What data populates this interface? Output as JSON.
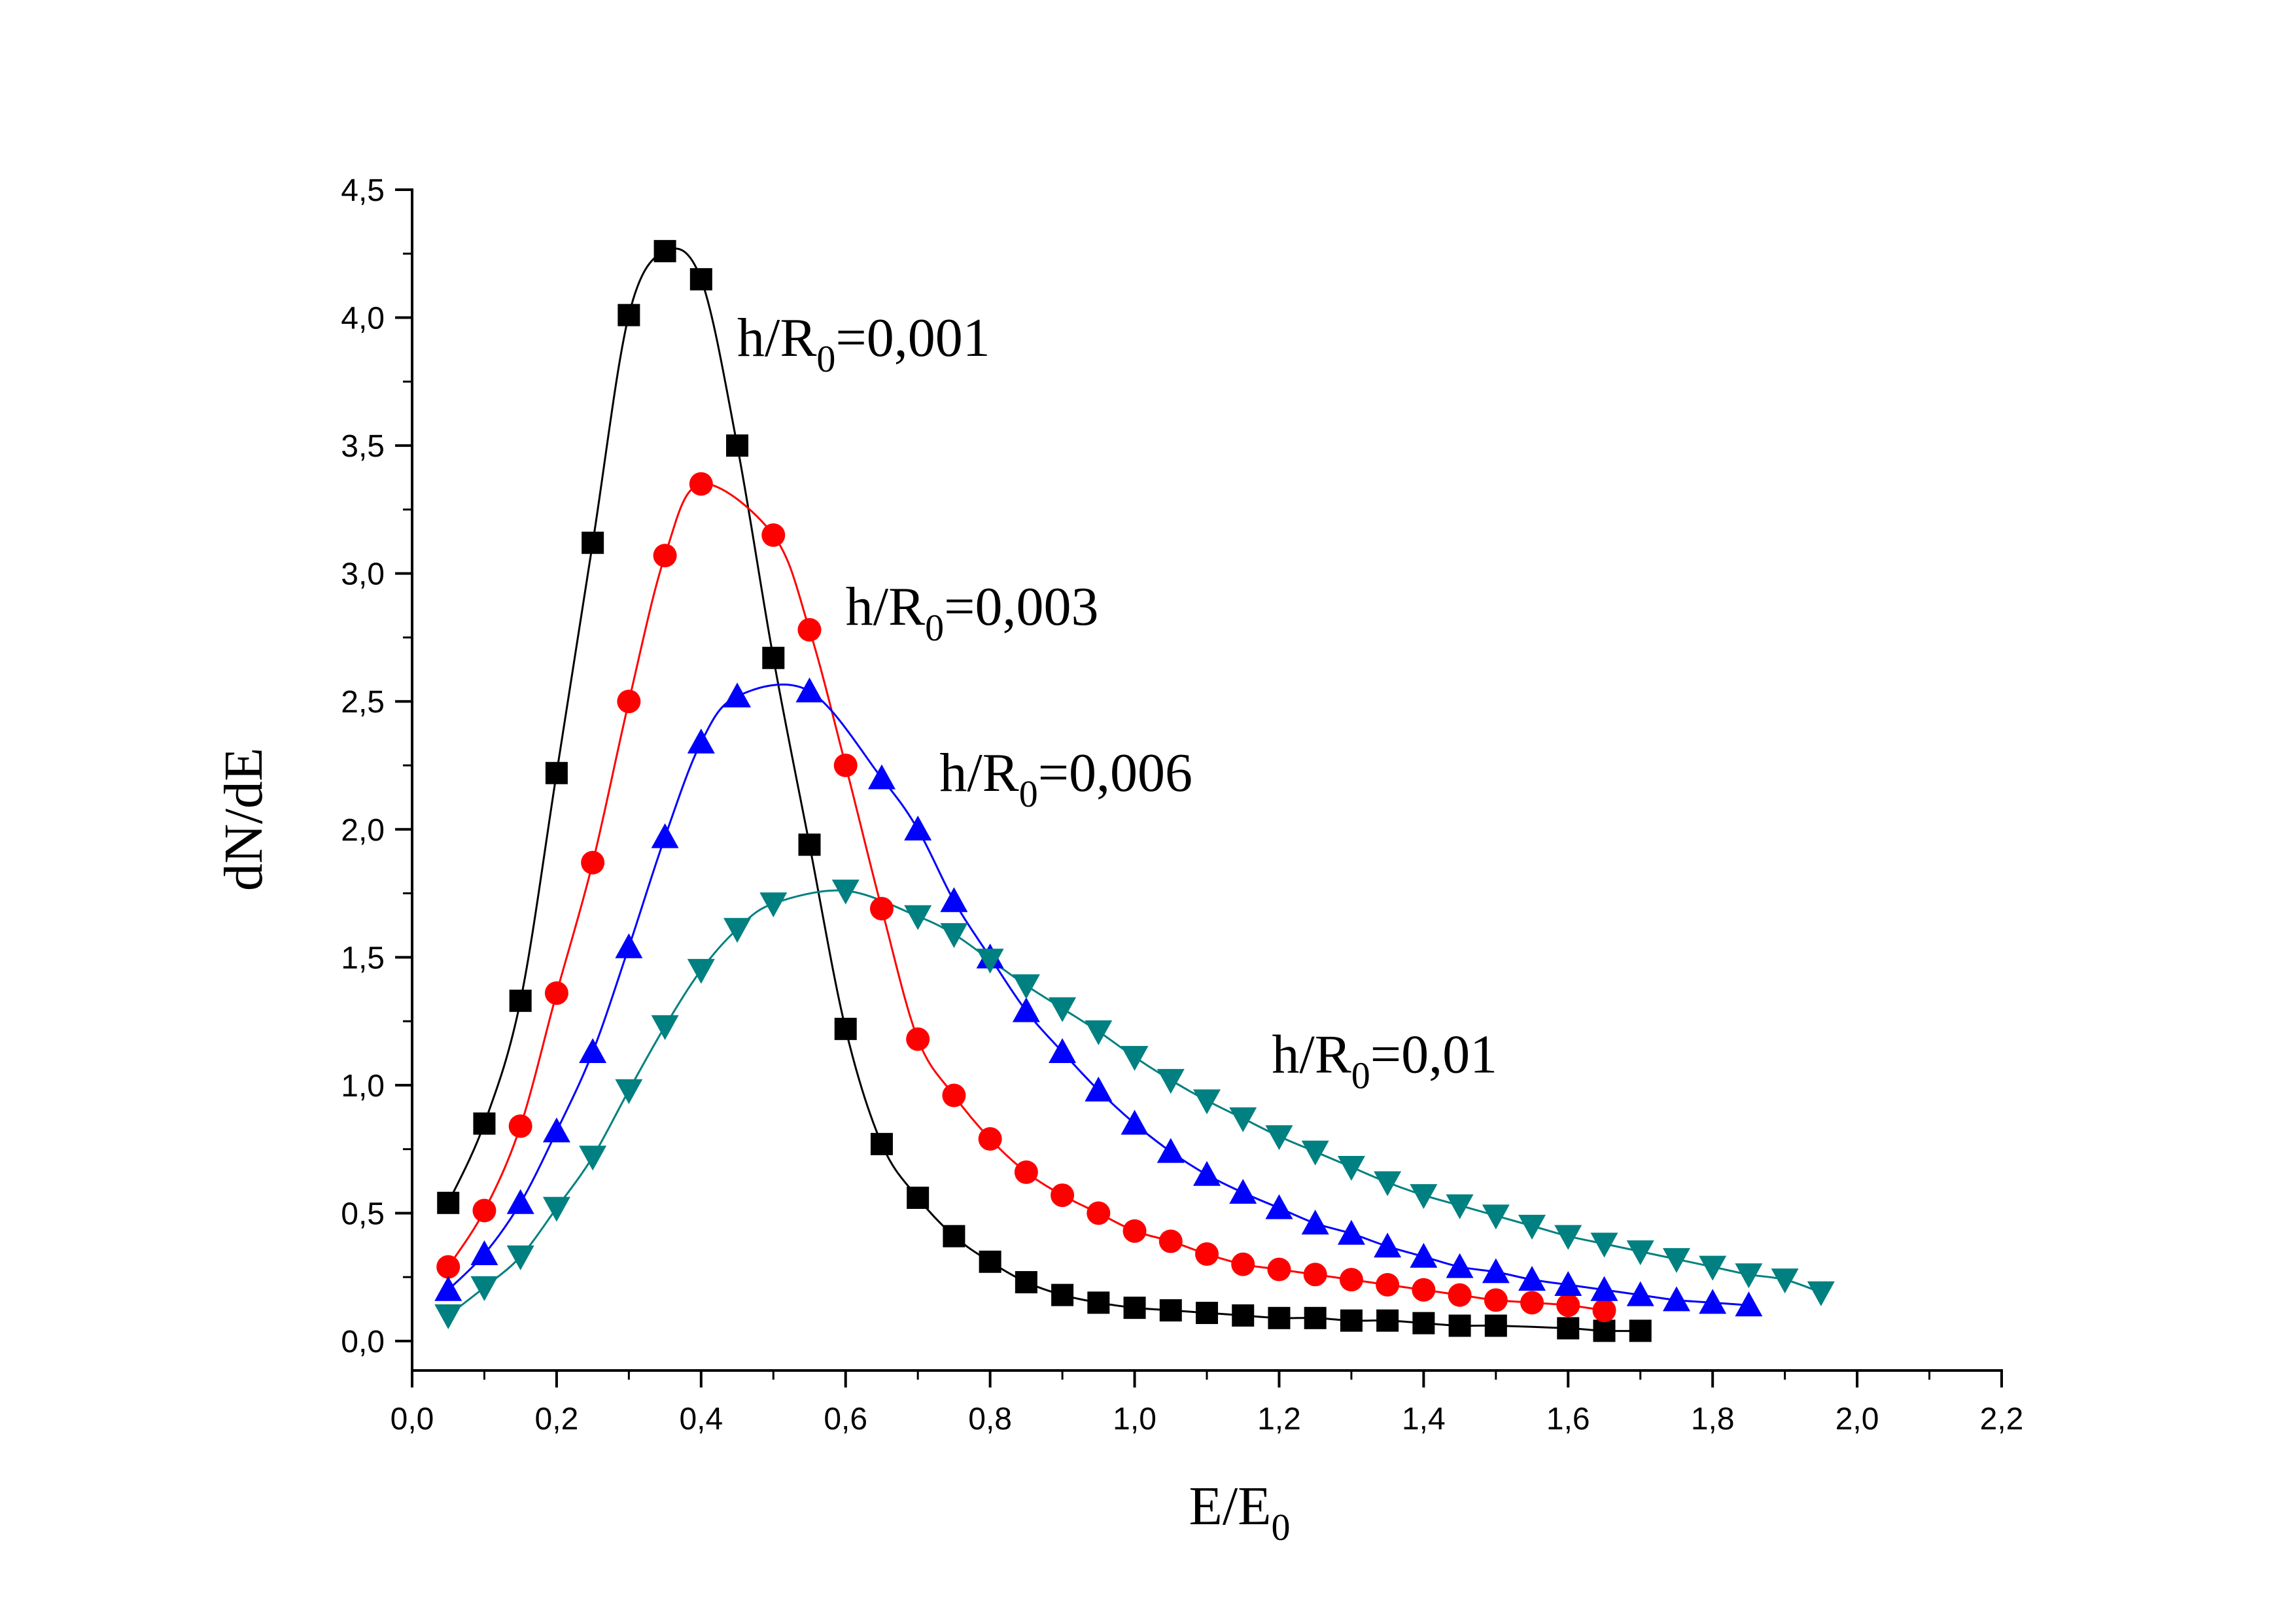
{
  "chart_data": {
    "type": "line",
    "title": "",
    "xlabel": {
      "main": "E/E",
      "sub": "0"
    },
    "ylabel": "dN/dE",
    "xlim": [
      0.0,
      2.2
    ],
    "ylim": [
      0.0,
      4.5
    ],
    "xticks": [
      0.0,
      0.2,
      0.4,
      0.6,
      0.8,
      1.0,
      1.2,
      1.4,
      1.6,
      1.8,
      2.0,
      2.2
    ],
    "xtick_labels": [
      "0,0",
      "0,2",
      "0,4",
      "0,6",
      "0,8",
      "1,0",
      "1,2",
      "1,4",
      "1,6",
      "1,8",
      "2,0",
      "2,2"
    ],
    "yticks": [
      0.0,
      0.5,
      1.0,
      1.5,
      2.0,
      2.5,
      3.0,
      3.5,
      4.0,
      4.5
    ],
    "ytick_labels": [
      "0,0",
      "0,5",
      "1,0",
      "1,5",
      "2,0",
      "2,5",
      "3,0",
      "3,5",
      "4,0",
      "4,5"
    ],
    "grid": false,
    "legend": "none",
    "series": [
      {
        "marker": "square",
        "color": "#000000",
        "x": [
          0.05,
          0.1,
          0.15,
          0.2,
          0.25,
          0.3,
          0.35,
          0.4,
          0.45,
          0.5,
          0.55,
          0.6,
          0.65,
          0.7,
          0.75,
          0.8,
          0.85,
          0.9,
          0.95,
          1.0,
          1.05,
          1.1,
          1.15,
          1.2,
          1.25,
          1.3,
          1.35,
          1.4,
          1.45,
          1.5,
          1.6,
          1.65,
          1.7
        ],
        "y": [
          0.54,
          0.85,
          1.33,
          2.22,
          3.12,
          4.01,
          4.26,
          4.15,
          3.5,
          2.67,
          1.94,
          1.22,
          0.77,
          0.56,
          0.41,
          0.31,
          0.23,
          0.18,
          0.15,
          0.13,
          0.12,
          0.11,
          0.1,
          0.09,
          0.09,
          0.08,
          0.08,
          0.07,
          0.06,
          0.06,
          0.05,
          0.04,
          0.04
        ]
      },
      {
        "marker": "circle",
        "color": "#ff0000",
        "x": [
          0.05,
          0.1,
          0.15,
          0.2,
          0.25,
          0.3,
          0.35,
          0.4,
          0.5,
          0.55,
          0.6,
          0.65,
          0.7,
          0.75,
          0.8,
          0.85,
          0.9,
          0.95,
          1.0,
          1.05,
          1.1,
          1.15,
          1.2,
          1.25,
          1.3,
          1.35,
          1.4,
          1.45,
          1.5,
          1.55,
          1.6,
          1.65
        ],
        "y": [
          0.29,
          0.51,
          0.84,
          1.36,
          1.87,
          2.5,
          3.07,
          3.35,
          3.15,
          2.78,
          2.25,
          1.69,
          1.18,
          0.96,
          0.79,
          0.66,
          0.57,
          0.5,
          0.43,
          0.39,
          0.34,
          0.3,
          0.28,
          0.26,
          0.24,
          0.22,
          0.2,
          0.18,
          0.16,
          0.15,
          0.14,
          0.12
        ]
      },
      {
        "marker": "triangle-up",
        "color": "#0000ff",
        "x": [
          0.05,
          0.1,
          0.15,
          0.2,
          0.25,
          0.3,
          0.35,
          0.4,
          0.45,
          0.55,
          0.65,
          0.7,
          0.75,
          0.8,
          0.85,
          0.9,
          0.95,
          1.0,
          1.05,
          1.1,
          1.15,
          1.2,
          1.25,
          1.3,
          1.35,
          1.4,
          1.45,
          1.5,
          1.55,
          1.6,
          1.65,
          1.7,
          1.75,
          1.8,
          1.85
        ],
        "y": [
          0.2,
          0.34,
          0.54,
          0.82,
          1.13,
          1.54,
          1.97,
          2.34,
          2.52,
          2.54,
          2.2,
          2.0,
          1.72,
          1.5,
          1.29,
          1.13,
          0.98,
          0.85,
          0.74,
          0.65,
          0.58,
          0.52,
          0.46,
          0.42,
          0.37,
          0.33,
          0.29,
          0.27,
          0.24,
          0.22,
          0.2,
          0.18,
          0.16,
          0.15,
          0.14
        ]
      },
      {
        "marker": "triangle-down",
        "color": "#008080",
        "x": [
          0.05,
          0.1,
          0.15,
          0.2,
          0.25,
          0.3,
          0.35,
          0.4,
          0.45,
          0.5,
          0.6,
          0.7,
          0.75,
          0.8,
          0.85,
          0.9,
          0.95,
          1.0,
          1.05,
          1.1,
          1.15,
          1.2,
          1.25,
          1.3,
          1.35,
          1.4,
          1.45,
          1.5,
          1.55,
          1.6,
          1.65,
          1.7,
          1.75,
          1.8,
          1.85,
          1.9,
          1.95
        ],
        "y": [
          0.1,
          0.21,
          0.33,
          0.52,
          0.72,
          0.98,
          1.23,
          1.45,
          1.61,
          1.71,
          1.76,
          1.66,
          1.59,
          1.49,
          1.39,
          1.3,
          1.21,
          1.11,
          1.02,
          0.94,
          0.87,
          0.8,
          0.74,
          0.68,
          0.62,
          0.57,
          0.53,
          0.49,
          0.45,
          0.41,
          0.38,
          0.35,
          0.32,
          0.29,
          0.26,
          0.24,
          0.19
        ]
      }
    ],
    "annotations": [
      {
        "text": "h/R",
        "sub": "0",
        "tail": "=0,001",
        "x": 0.45,
        "y": 3.85
      },
      {
        "text": "h/R",
        "sub": "0",
        "tail": "=0,003",
        "x": 0.6,
        "y": 2.8
      },
      {
        "text": "h/R",
        "sub": "0",
        "tail": "=0,006",
        "x": 0.73,
        "y": 2.15
      },
      {
        "text": "h/R",
        "sub": "0",
        "tail": "=0,01",
        "x": 1.19,
        "y": 1.05
      }
    ]
  }
}
